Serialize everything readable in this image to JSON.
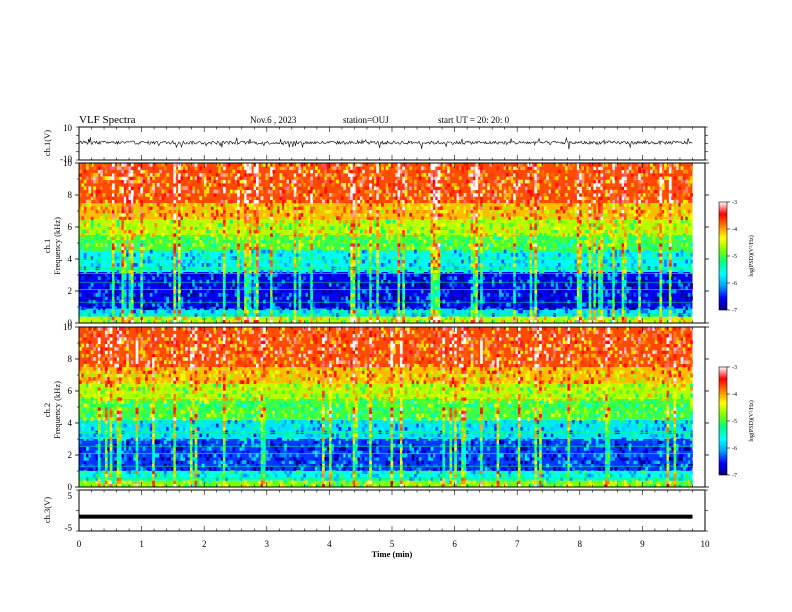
{
  "header": {
    "title": "VLF Spectra",
    "date": "Nov.6 , 2023",
    "station": "station=OUJ",
    "start": "start UT =  20: 20: 0"
  },
  "chart_data": [
    {
      "type": "line",
      "name": "waveform-ch1",
      "ylabel": "ch.1(V)",
      "ylim": [
        -10,
        10
      ],
      "yticklabels": [
        "10",
        "-10"
      ],
      "xlim": [
        0,
        10
      ],
      "data_span_min": [
        0,
        9.8
      ],
      "description_of_trace": "noisy waveform centred slightly above 0 V with spikes to about ±4 V"
    },
    {
      "type": "heatmap",
      "name": "spectrogram-ch1",
      "ylabel": "ch.1\nFrequency (kHz)",
      "ylim": [
        0,
        10
      ],
      "yticks": [
        0,
        2,
        4,
        6,
        8,
        10
      ],
      "xlim": [
        0,
        10
      ],
      "data_span_min": [
        0,
        9.8
      ],
      "colorbar": {
        "label": "log(PSD)(V²/Hz)",
        "range": [
          -7,
          -3
        ],
        "ticks": [
          -7,
          -6,
          -5,
          -4,
          -3
        ],
        "colormap": [
          "#000080",
          "#0000ff",
          "#00a0ff",
          "#00ffff",
          "#00ff80",
          "#80ff00",
          "#ffff00",
          "#ff8000",
          "#ff0000",
          "#ffffff"
        ]
      },
      "bands": [
        {
          "f_khz": [
            0,
            0.4
          ],
          "level": -4.6
        },
        {
          "f_khz": [
            0.4,
            0.9
          ],
          "level": -5.8
        },
        {
          "f_khz": [
            0.9,
            3.2
          ],
          "level": -6.6
        },
        {
          "f_khz": [
            3.2,
            4.5
          ],
          "level": -5.7
        },
        {
          "f_khz": [
            4.5,
            5.5
          ],
          "level": -5.0
        },
        {
          "f_khz": [
            5.5,
            6.5
          ],
          "level": -4.6
        },
        {
          "f_khz": [
            6.5,
            7.5
          ],
          "level": -4.1
        },
        {
          "f_khz": [
            7.5,
            10
          ],
          "level": -3.7
        }
      ]
    },
    {
      "type": "heatmap",
      "name": "spectrogram-ch2",
      "ylabel": "ch.2\nFrequency (kHz)",
      "ylim": [
        0,
        10
      ],
      "yticks": [
        0,
        2,
        4,
        6,
        8,
        10
      ],
      "xlim": [
        0,
        10
      ],
      "data_span_min": [
        0,
        9.8
      ],
      "colorbar": {
        "label": "log(PSD)(V²/Hz)",
        "range": [
          -7,
          -3
        ],
        "ticks": [
          -7,
          -6,
          -5,
          -4,
          -3
        ],
        "colormap": [
          "#000080",
          "#0000ff",
          "#00a0ff",
          "#00ffff",
          "#00ff80",
          "#80ff00",
          "#ffff00",
          "#ff8000",
          "#ff0000",
          "#ffffff"
        ]
      },
      "bands": [
        {
          "f_khz": [
            0,
            0.4
          ],
          "level": -4.8
        },
        {
          "f_khz": [
            0.4,
            1.0
          ],
          "level": -5.6
        },
        {
          "f_khz": [
            1.0,
            3.0
          ],
          "level": -6.4
        },
        {
          "f_khz": [
            3.0,
            4.2
          ],
          "level": -5.8
        },
        {
          "f_khz": [
            4.2,
            5.5
          ],
          "level": -5.0
        },
        {
          "f_khz": [
            5.5,
            6.5
          ],
          "level": -4.6
        },
        {
          "f_khz": [
            6.5,
            7.5
          ],
          "level": -4.1
        },
        {
          "f_khz": [
            7.5,
            10
          ],
          "level": -3.7
        }
      ]
    },
    {
      "type": "line",
      "name": "waveform-ch3",
      "ylabel": "ch.3(V)",
      "ylim": [
        -5,
        5
      ],
      "yticklabels": [
        "5",
        "-5"
      ],
      "xlim": [
        0,
        10
      ],
      "data_span_min": [
        0,
        9.8
      ],
      "constant_value": -1.5
    }
  ],
  "xaxis": {
    "label": "Time (min)",
    "ticks": [
      0,
      1,
      2,
      3,
      4,
      5,
      6,
      7,
      8,
      9,
      10
    ]
  }
}
